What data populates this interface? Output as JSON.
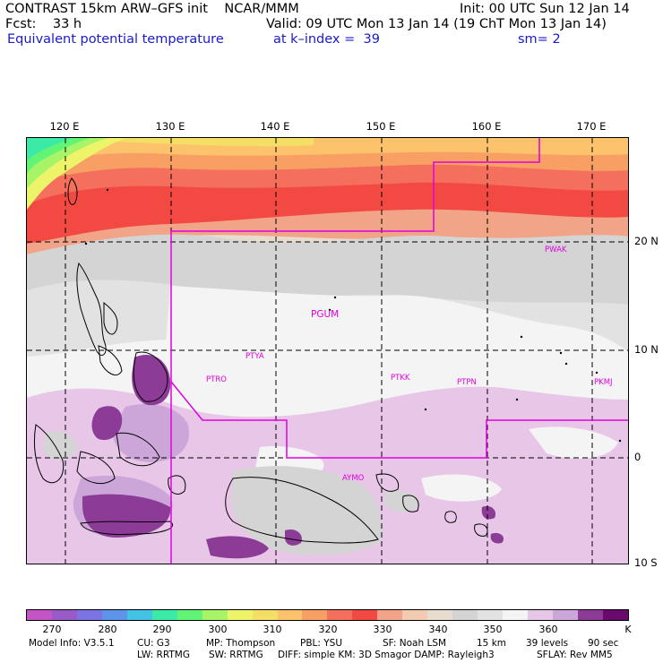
{
  "header": {
    "line1_left": "CONTRAST 15km ARW–GFS init    NCAR/MMM",
    "line1_right": "Init: 00 UTC Sun 12 Jan 14",
    "line2_left": "Fcst:    33 h",
    "line2_right": "Valid: 09 UTC Mon 13 Jan 14 (19 ChT Mon 13 Jan 14)",
    "line3_field": "Equivalent potential temperature",
    "line3_level": "at k–index =  39",
    "line3_smooth": "sm= 2"
  },
  "map": {
    "lon_labels": [
      "120 E",
      "130 E",
      "140 E",
      "150 E",
      "160 E",
      "170 E"
    ],
    "lat_labels": [
      "20 N",
      "10 N",
      "0",
      "10 S"
    ],
    "stations": [
      {
        "id": "PWAK"
      },
      {
        "id": "PGUM"
      },
      {
        "id": "PTYA"
      },
      {
        "id": "PTRO"
      },
      {
        "id": "PTKK"
      },
      {
        "id": "PTPN"
      },
      {
        "id": "PKMJ"
      },
      {
        "id": "AYMO"
      }
    ],
    "boundary_color": "#e000e0"
  },
  "colorbar": {
    "colors": [
      "#c455c4",
      "#9a5ac8",
      "#7c74e2",
      "#5c94ea",
      "#42c2e4",
      "#3ceaa8",
      "#62f474",
      "#a8f468",
      "#eef46a",
      "#f4de66",
      "#fcc26c",
      "#f8a064",
      "#f4705c",
      "#f24a42",
      "#f2a488",
      "#f2cbb2",
      "#e8dccf",
      "#d4d4d4",
      "#e2e2e2",
      "#f4f4f4",
      "#e8c6e8",
      "#cca6d8",
      "#8c3c96",
      "#6a0a6e"
    ],
    "labels": [
      "270",
      "280",
      "290",
      "300",
      "310",
      "320",
      "330",
      "340",
      "350",
      "360"
    ],
    "unit": "K"
  },
  "footer": {
    "line1": [
      "Model Info: V3.5.1",
      "CU: G3",
      "MP: Thompson",
      "PBL: YSU",
      "SF: Noah LSM",
      "15 km",
      "39 levels",
      "90 sec"
    ],
    "line2": [
      "LW: RRTMG",
      "SW: RRTMG",
      "DIFF: simple KM: 3D Smagor DAMP: Rayleigh3",
      "SFLAY: Rev MM5"
    ]
  }
}
